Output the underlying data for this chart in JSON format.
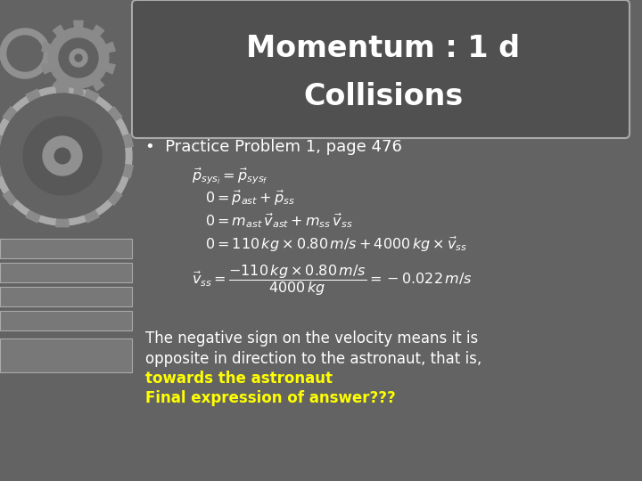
{
  "title_line1": "Momentum : 1 d",
  "title_line2": "Collisions",
  "title_color": "#ffffff",
  "title_bg_color": "#505050",
  "bg_color": "#636363",
  "bullet": "Practice Problem 1, page 476",
  "bullet_color": "#ffffff",
  "eq_color": "#ffffff",
  "text1": "The negative sign on the velocity means it is",
  "text2": "opposite in direction to the astronaut, that is,",
  "text3": "towards the astronaut",
  "text4": "Final expression of answer???",
  "text_white_color": "#ffffff",
  "text_yellow_color": "#ffff00",
  "gear_outer_color": "#8a8a8a",
  "gear_mid_color": "#686868",
  "gear_dark_color": "#505050",
  "strip_color": "#787878",
  "strip_edge_color": "#aaaaaa"
}
